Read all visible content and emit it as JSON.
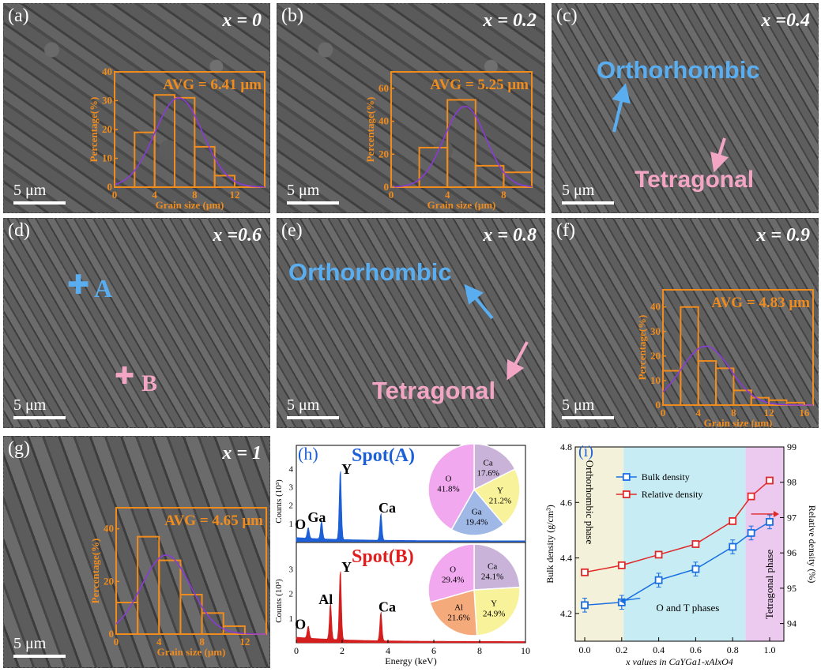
{
  "panels": {
    "a": {
      "label": "(a)",
      "x": "x = 0",
      "scale": "5 μm"
    },
    "b": {
      "label": "(b)",
      "x": "x = 0.2",
      "scale": "5 μm"
    },
    "c": {
      "label": "(c)",
      "x": "x =0.4",
      "scale": "5 μm",
      "ortho": "Orthorhombic",
      "tetra": "Tetragonal"
    },
    "d": {
      "label": "(d)",
      "x": "x =0.6",
      "scale": "5 μm",
      "spotA": "A",
      "spotB": "B"
    },
    "e": {
      "label": "(e)",
      "x": "x = 0.8",
      "scale": "5 μm",
      "ortho": "Orthorhombic",
      "tetra": "Tetragonal"
    },
    "f": {
      "label": "(f)",
      "x": "x = 0.9",
      "scale": "5 μm"
    },
    "g": {
      "label": "(g)",
      "x": "x = 1",
      "scale": "5 μm"
    }
  },
  "histograms": {
    "a": {
      "avg": "AVG = 6.41 μm",
      "ylabel": "Percentage(%)",
      "xlabel": "Grain size (μm)",
      "xticks": [
        "0",
        "4",
        "8",
        "12"
      ],
      "yticks": [
        "0",
        "10",
        "20",
        "30",
        "40"
      ],
      "ymax": 40,
      "xmax": 15,
      "bins": [
        {
          "x0": 2,
          "x1": 4,
          "v": 19
        },
        {
          "x0": 4,
          "x1": 6,
          "v": 32
        },
        {
          "x0": 6,
          "x1": 8,
          "v": 31
        },
        {
          "x0": 8,
          "x1": 10,
          "v": 14
        },
        {
          "x0": 10,
          "x1": 12,
          "v": 4
        }
      ],
      "mu": 6.41,
      "sigma": 2.4,
      "peak": 31
    },
    "b": {
      "avg": "AVG = 5.25 μm",
      "ylabel": "Percentage(%)",
      "xlabel": "Grain size (μm)",
      "xticks": [
        "0",
        "4",
        "8"
      ],
      "yticks": [
        "0",
        "20",
        "40",
        "60"
      ],
      "ymax": 70,
      "xmax": 10,
      "bins": [
        {
          "x0": 2,
          "x1": 4,
          "v": 24
        },
        {
          "x0": 4,
          "x1": 6,
          "v": 53
        },
        {
          "x0": 6,
          "x1": 8,
          "v": 13
        },
        {
          "x0": 8,
          "x1": 10,
          "v": 9
        }
      ],
      "mu": 5.25,
      "sigma": 1.5,
      "peak": 49
    },
    "f": {
      "avg": "AVG = 4.83 μm",
      "ylabel": "Percentage(%)",
      "xlabel": "Grain size (μm)",
      "xticks": [
        "0",
        "4",
        "8",
        "12",
        "16"
      ],
      "yticks": [
        "0",
        "10",
        "20",
        "30",
        "40"
      ],
      "ymax": 47,
      "xmax": 17,
      "bins": [
        {
          "x0": 0,
          "x1": 2,
          "v": 14
        },
        {
          "x0": 2,
          "x1": 4,
          "v": 40
        },
        {
          "x0": 4,
          "x1": 6,
          "v": 18
        },
        {
          "x0": 6,
          "x1": 8,
          "v": 15
        },
        {
          "x0": 8,
          "x1": 10,
          "v": 6
        },
        {
          "x0": 10,
          "x1": 12,
          "v": 3
        },
        {
          "x0": 12,
          "x1": 14,
          "v": 2
        },
        {
          "x0": 14,
          "x1": 16,
          "v": 1
        }
      ],
      "mu": 4.83,
      "sigma": 2.8,
      "peak": 24
    },
    "g": {
      "avg": "AVG = 4.65 μm",
      "ylabel": "Percentage(%)",
      "xlabel": "Grain size (μm)",
      "xticks": [
        "0",
        "4",
        "8",
        "12"
      ],
      "yticks": [
        "0",
        "20",
        "40"
      ],
      "ymax": 48,
      "xmax": 14,
      "bins": [
        {
          "x0": 0,
          "x1": 2,
          "v": 12
        },
        {
          "x0": 2,
          "x1": 4,
          "v": 37
        },
        {
          "x0": 4,
          "x1": 6,
          "v": 28
        },
        {
          "x0": 6,
          "x1": 8,
          "v": 15
        },
        {
          "x0": 8,
          "x1": 10,
          "v": 8
        },
        {
          "x0": 10,
          "x1": 12,
          "v": 3
        }
      ],
      "mu": 4.65,
      "sigma": 2.3,
      "peak": 30
    }
  },
  "eds": {
    "label": "(h)",
    "spotA": "Spot(A)",
    "spotB": "Spot(B)",
    "xlabel": "Energy (keV)",
    "ylabel": "Counts (10³)",
    "xticks": [
      "0",
      "2",
      "4",
      "6",
      "8",
      "10"
    ],
    "ticksA": [
      "1",
      "2",
      "3",
      "4"
    ],
    "ticksB": [
      "1",
      "2",
      "3"
    ],
    "peaksA": [
      {
        "name": "O",
        "e": 0.52,
        "h": 0.6
      },
      {
        "name": "Ga",
        "e": 1.1,
        "h": 1.0
      },
      {
        "name": "Y",
        "e": 1.92,
        "h": 3.9
      },
      {
        "name": "Ca",
        "e": 3.69,
        "h": 1.5
      }
    ],
    "peaksB": [
      {
        "name": "O",
        "e": 0.52,
        "h": 0.5
      },
      {
        "name": "Al",
        "e": 1.49,
        "h": 1.5
      },
      {
        "name": "Y",
        "e": 1.92,
        "h": 2.9
      },
      {
        "name": "Ca",
        "e": 3.69,
        "h": 1.2
      }
    ],
    "pieA": [
      {
        "name": "Ca",
        "value": "17.6%",
        "v": 17.6,
        "color": "#c9b3d9"
      },
      {
        "name": "Y",
        "value": "21.2%",
        "v": 21.2,
        "color": "#f8f29a"
      },
      {
        "name": "Ga",
        "value": "19.4%",
        "v": 19.4,
        "color": "#9fb8e6"
      },
      {
        "name": "O",
        "value": "41.8%",
        "v": 41.8,
        "color": "#f1a8ef"
      }
    ],
    "pieB": [
      {
        "name": "Ca",
        "value": "24.1%",
        "v": 24.1,
        "color": "#c9b3d9"
      },
      {
        "name": "Y",
        "value": "24.9%",
        "v": 24.9,
        "color": "#f8f29a"
      },
      {
        "name": "Al",
        "value": "21.6%",
        "v": 21.6,
        "color": "#f5aa7c"
      },
      {
        "name": "O",
        "value": "29.4%",
        "v": 29.4,
        "color": "#f1a8ef"
      }
    ]
  },
  "density": {
    "label": "(i)",
    "ylabel_left": "Bulk density (g/cm³)",
    "ylabel_right": "Relative density (%)",
    "xlabel": "x values in CaYGa1-xAlxO4",
    "xticks": [
      "0.0",
      "0.2",
      "0.4",
      "0.6",
      "0.8",
      "1.0"
    ],
    "yticks_left": [
      "4.2",
      "4.4",
      "4.6",
      "4.8"
    ],
    "yticks_right": [
      "94",
      "95",
      "96",
      "97",
      "98",
      "99"
    ],
    "phase_ortho": "Orthorhombic phase",
    "phase_mixed": "O and T phases",
    "phase_tetra": "Tetragonal phase",
    "legend_bulk": "Bulk density",
    "legend_rel": "Relative density",
    "x": [
      0,
      0.2,
      0.4,
      0.6,
      0.8,
      0.9,
      1.0
    ],
    "bulk": [
      4.23,
      4.24,
      4.32,
      4.36,
      4.44,
      4.49,
      4.53
    ],
    "bulk_err": [
      0.025,
      0.025,
      0.025,
      0.025,
      0.025,
      0.025,
      0.025
    ],
    "relative": [
      95.45,
      95.65,
      95.95,
      96.25,
      96.9,
      97.6,
      98.05
    ],
    "colors": {
      "bulk": "#1a6fe0",
      "rel": "#e02828",
      "ortho_bg": "#f3f1d9",
      "mixed_bg": "#c7ecf4",
      "tetra_bg": "#ecc9ee"
    }
  }
}
